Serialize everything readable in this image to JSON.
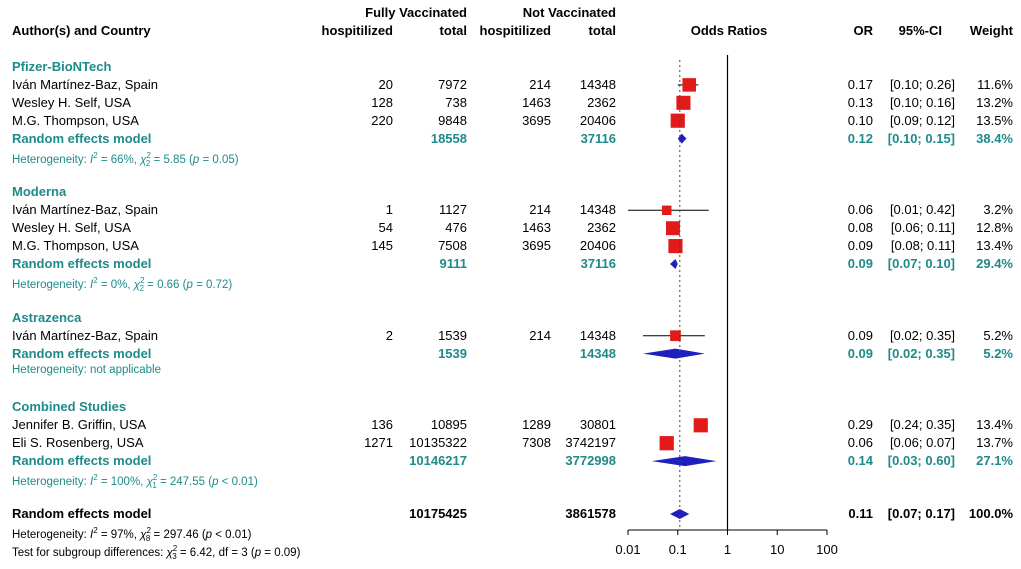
{
  "chart_data": {
    "type": "forest",
    "title": "",
    "xlabel": "Odds Ratios",
    "x_scale": "log10",
    "xlim": [
      0.01,
      100
    ],
    "ticks": [
      "0.01",
      "0.1",
      "1",
      "10",
      "100"
    ],
    "tick_values": [
      0.01,
      0.1,
      1,
      10,
      100
    ],
    "reference_line": 1,
    "overall_dashed_line": 0.11,
    "headers": {
      "author": "Author(s) and Country",
      "group1": "Fully Vaccinated",
      "group2": "Not Vaccinated",
      "hosp": "hospitilized",
      "total": "total",
      "plot": "Odds Ratios",
      "or": "OR",
      "ci": "95%-CI",
      "weight": "Weight"
    },
    "groups": [
      {
        "name": "Pfizer-BioNTech",
        "studies": [
          {
            "study": "Iván Martínez-Baz,  Spain",
            "vh": "20",
            "vt": "7972",
            "nh": "214",
            "nt": "14348",
            "or_text": "0.17",
            "ci_text": "[0.10; 0.26]",
            "w_text": "11.6%",
            "or": 0.17,
            "lo": 0.1,
            "hi": 0.26,
            "weight": 11.6
          },
          {
            "study": "Wesley H. Self,  USA",
            "vh": "128",
            "vt": "738",
            "nh": "1463",
            "nt": "2362",
            "or_text": "0.13",
            "ci_text": "[0.10; 0.16]",
            "w_text": "13.2%",
            "or": 0.13,
            "lo": 0.1,
            "hi": 0.16,
            "weight": 13.2
          },
          {
            "study": "M.G. Thompson,  USA",
            "vh": "220",
            "vt": "9848",
            "nh": "3695",
            "nt": "20406",
            "or_text": "0.10",
            "ci_text": "[0.09; 0.12]",
            "w_text": "13.5%",
            "or": 0.1,
            "lo": 0.09,
            "hi": 0.12,
            "weight": 13.5
          }
        ],
        "re": {
          "label": "Random effects model",
          "vt": "18558",
          "nt": "37116",
          "or_text": "0.12",
          "ci_text": "[0.10; 0.15]",
          "w_text": "38.4%",
          "or": 0.12,
          "lo": 0.1,
          "hi": 0.15
        },
        "het": {
          "pre": "Heterogeneity: ",
          "i2": "66%",
          "df": "2",
          "chi": "5.85",
          "p": "= 0.05"
        }
      },
      {
        "name": "Moderna",
        "studies": [
          {
            "study": "Iván Martínez-Baz,  Spain",
            "vh": "1",
            "vt": "1127",
            "nh": "214",
            "nt": "14348",
            "or_text": "0.06",
            "ci_text": "[0.01; 0.42]",
            "w_text": "3.2%",
            "or": 0.06,
            "lo": 0.01,
            "hi": 0.42,
            "weight": 3.2
          },
          {
            "study": "Wesley H. Self,  USA",
            "vh": "54",
            "vt": "476",
            "nh": "1463",
            "nt": "2362",
            "or_text": "0.08",
            "ci_text": "[0.06; 0.11]",
            "w_text": "12.8%",
            "or": 0.08,
            "lo": 0.06,
            "hi": 0.11,
            "weight": 12.8
          },
          {
            "study": "M.G. Thompson,  USA",
            "vh": "145",
            "vt": "7508",
            "nh": "3695",
            "nt": "20406",
            "or_text": "0.09",
            "ci_text": "[0.08; 0.11]",
            "w_text": "13.4%",
            "or": 0.09,
            "lo": 0.08,
            "hi": 0.11,
            "weight": 13.4
          }
        ],
        "re": {
          "label": "Random effects model",
          "vt": "9111",
          "nt": "37116",
          "or_text": "0.09",
          "ci_text": "[0.07; 0.10]",
          "w_text": "29.4%",
          "or": 0.09,
          "lo": 0.07,
          "hi": 0.1
        },
        "het": {
          "pre": "Heterogeneity: ",
          "i2": "0%",
          "df": "2",
          "chi": "0.66",
          "p": "= 0.72"
        }
      },
      {
        "name": "Astrazenca",
        "studies": [
          {
            "study": "Iván Martínez-Baz,  Spain",
            "vh": "2",
            "vt": "1539",
            "nh": "214",
            "nt": "14348",
            "or_text": "0.09",
            "ci_text": "[0.02; 0.35]",
            "w_text": "5.2%",
            "or": 0.09,
            "lo": 0.02,
            "hi": 0.35,
            "weight": 5.2
          }
        ],
        "re": {
          "label": "Random effects model",
          "vt": "1539",
          "nt": "14348",
          "or_text": "0.09",
          "ci_text": "[0.02; 0.35]",
          "w_text": "5.2%",
          "or": 0.09,
          "lo": 0.02,
          "hi": 0.35
        },
        "het": {
          "pre": "Heterogeneity: not applicable"
        }
      },
      {
        "name": "Combined Studies",
        "studies": [
          {
            "study": "Jennifer B. Griffin,  USA",
            "vh": "136",
            "vt": "10895",
            "nh": "1289",
            "nt": "30801",
            "or_text": "0.29",
            "ci_text": "[0.24; 0.35]",
            "w_text": "13.4%",
            "or": 0.29,
            "lo": 0.24,
            "hi": 0.35,
            "weight": 13.4
          },
          {
            "study": "Eli S. Rosenberg,  USA",
            "vh": "1271",
            "vt": "10135322",
            "nh": "7308",
            "nt": "3742197",
            "or_text": "0.06",
            "ci_text": "[0.06; 0.07]",
            "w_text": "13.7%",
            "or": 0.06,
            "lo": 0.06,
            "hi": 0.07,
            "weight": 13.7
          }
        ],
        "re": {
          "label": "Random effects model",
          "vt": "10146217",
          "nt": "3772998",
          "or_text": "0.14",
          "ci_text": "[0.03; 0.60]",
          "w_text": "27.1%",
          "or": 0.14,
          "lo": 0.03,
          "hi": 0.6
        },
        "het": {
          "pre": "Heterogeneity: ",
          "i2": "100%",
          "df": "1",
          "chi": "247.55",
          "p": "< 0.01"
        }
      }
    ],
    "overall": {
      "label": "Random effects model",
      "vt": "10175425",
      "nt": "3861578",
      "or_text": "0.11",
      "ci_text": "[0.07; 0.17]",
      "w_text": "100.0%",
      "or": 0.11,
      "lo": 0.07,
      "hi": 0.17,
      "het": {
        "pre": "Heterogeneity: ",
        "i2": "97%",
        "df": "8",
        "chi": "297.46",
        "p": "< 0.01"
      },
      "subgroup": {
        "pre": "Test for subgroup differences: ",
        "df_sub": "3",
        "chi": "6.42",
        "df_text": ", df = 3",
        "p": "= 0.09"
      }
    },
    "colors": {
      "box": "#e21a1a",
      "diamond": "#1f1fbf",
      "teal": "#1f8a8a",
      "line": "#000000"
    }
  }
}
